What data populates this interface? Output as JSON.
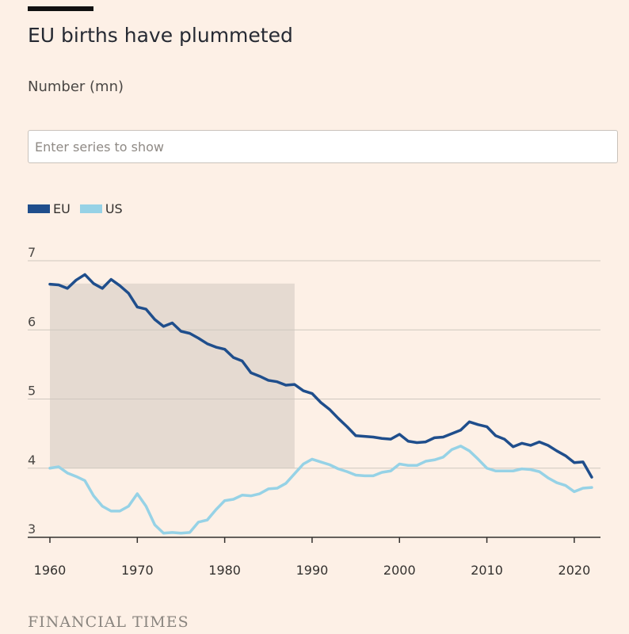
{
  "header": {
    "title": "EU births have plummeted",
    "subtitle": "Number (mn)"
  },
  "search": {
    "placeholder": "Enter series to show"
  },
  "footer": {
    "brand": "FINANCIAL TIMES"
  },
  "colors": {
    "eu": "#1F4E8C",
    "us": "#96D2E6",
    "shade": "#E5DAD1",
    "grid": "#CFC7BF",
    "background": "#FDF0E6"
  },
  "chart_data": {
    "type": "line",
    "xlabel": "",
    "ylabel": "Number (mn)",
    "xlim": [
      1960,
      2023
    ],
    "ylim": [
      3,
      7
    ],
    "yticks": [
      3,
      4,
      5,
      6,
      7
    ],
    "xticks": [
      1960,
      1970,
      1980,
      1990,
      2000,
      2010,
      2020
    ],
    "grid": true,
    "legend": "top-left",
    "shaded_region": {
      "x": [
        1960,
        1988
      ],
      "y": [
        4,
        6.67
      ]
    },
    "x": [
      1960,
      1961,
      1962,
      1963,
      1964,
      1965,
      1966,
      1967,
      1968,
      1969,
      1970,
      1971,
      1972,
      1973,
      1974,
      1975,
      1976,
      1977,
      1978,
      1979,
      1980,
      1981,
      1982,
      1983,
      1984,
      1985,
      1986,
      1987,
      1988,
      1989,
      1990,
      1991,
      1992,
      1993,
      1994,
      1995,
      1996,
      1997,
      1998,
      1999,
      2000,
      2001,
      2002,
      2003,
      2004,
      2005,
      2006,
      2007,
      2008,
      2009,
      2010,
      2011,
      2012,
      2013,
      2014,
      2015,
      2016,
      2017,
      2018,
      2019,
      2020,
      2021,
      2022
    ],
    "series": [
      {
        "name": "EU",
        "values": [
          6.66,
          6.65,
          6.6,
          6.72,
          6.8,
          6.67,
          6.6,
          6.73,
          6.64,
          6.53,
          6.33,
          6.3,
          6.15,
          6.05,
          6.1,
          5.98,
          5.95,
          5.88,
          5.8,
          5.75,
          5.72,
          5.6,
          5.55,
          5.38,
          5.33,
          5.27,
          5.25,
          5.2,
          5.21,
          5.12,
          5.08,
          4.95,
          4.85,
          4.72,
          4.6,
          4.47,
          4.46,
          4.45,
          4.43,
          4.42,
          4.49,
          4.39,
          4.37,
          4.38,
          4.44,
          4.45,
          4.5,
          4.55,
          4.67,
          4.63,
          4.6,
          4.47,
          4.42,
          4.31,
          4.36,
          4.33,
          4.38,
          4.33,
          4.25,
          4.18,
          4.08,
          4.09,
          3.87
        ]
      },
      {
        "name": "US",
        "values": [
          4.0,
          4.02,
          3.93,
          3.88,
          3.82,
          3.6,
          3.45,
          3.38,
          3.38,
          3.45,
          3.63,
          3.45,
          3.18,
          3.06,
          3.07,
          3.06,
          3.07,
          3.22,
          3.25,
          3.4,
          3.53,
          3.55,
          3.61,
          3.6,
          3.63,
          3.7,
          3.71,
          3.78,
          3.92,
          4.06,
          4.13,
          4.09,
          4.05,
          3.99,
          3.95,
          3.9,
          3.89,
          3.89,
          3.94,
          3.96,
          4.06,
          4.04,
          4.04,
          4.1,
          4.12,
          4.16,
          4.27,
          4.32,
          4.25,
          4.13,
          4.0,
          3.96,
          3.96,
          3.96,
          3.99,
          3.98,
          3.95,
          3.86,
          3.79,
          3.75,
          3.66,
          3.71,
          3.72
        ]
      }
    ]
  }
}
